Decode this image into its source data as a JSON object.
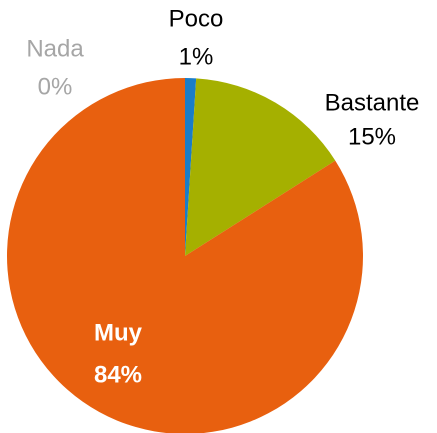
{
  "chart_data": {
    "type": "pie",
    "categories": [
      "Nada",
      "Poco",
      "Bastante",
      "Muy"
    ],
    "values": [
      0,
      1,
      15,
      84
    ],
    "value_labels": [
      "0%",
      "1%",
      "15%",
      "84%"
    ],
    "colors": [
      "#a6a6a6",
      "#1a7dc8",
      "#a5b000",
      "#e8600f"
    ]
  }
}
